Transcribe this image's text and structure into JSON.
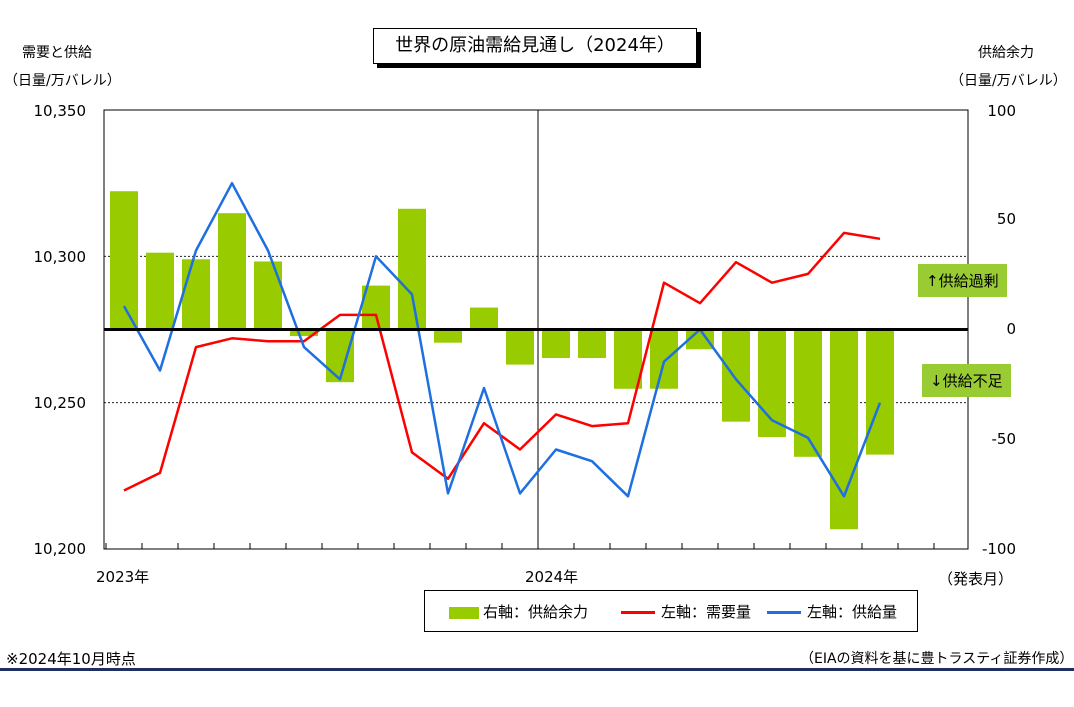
{
  "title": "世界の原油需給見通し（2024年）",
  "left_axis_title": "需要と供給",
  "left_axis_unit": "（日量/万バレル）",
  "right_axis_title": "供給余力",
  "right_axis_unit": "（日量/万バレル）",
  "left_ticks": [
    "10,350",
    "10,300",
    "10,250",
    "10,200"
  ],
  "right_ticks": [
    "100",
    "50",
    "0",
    "-50",
    "-100"
  ],
  "x_labels": [
    "2023年",
    "2024年"
  ],
  "x_axis_note": "（発表月）",
  "annotation_surplus": "↑供給過剰",
  "annotation_deficit": "↓供給不足",
  "legend": {
    "bar": "右軸：供給余力",
    "demand": "左軸：需要量",
    "supply": "左軸：供給量"
  },
  "note_left": "※2024年10月時点",
  "note_right": "（EIAの資料を基に豊トラスティ証券作成）",
  "colors": {
    "bar": "#99cc00",
    "demand": "#ff0000",
    "supply": "#1e6fe0",
    "zero_line": "#000000"
  },
  "chart_data": {
    "type": "bar+line",
    "categories": [
      "2023-01",
      "2023-02",
      "2023-03",
      "2023-04",
      "2023-05",
      "2023-06",
      "2023-07",
      "2023-08",
      "2023-09",
      "2023-10",
      "2023-11",
      "2023-12",
      "2024-01",
      "2024-02",
      "2024-03",
      "2024-04",
      "2024-05",
      "2024-06",
      "2024-07",
      "2024-08",
      "2024-09",
      "2024-10"
    ],
    "series": [
      {
        "name": "右軸：供給余力",
        "axis": "right",
        "type": "bar",
        "values": [
          63,
          35,
          32,
          53,
          31,
          -3,
          -24,
          20,
          55,
          -6,
          10,
          -16,
          -13,
          -13,
          -27,
          -27,
          -9,
          -42,
          -49,
          -58,
          -91,
          -57
        ]
      },
      {
        "name": "左軸：需要量",
        "axis": "left",
        "type": "line",
        "values": [
          10220,
          10226,
          10269,
          10272,
          10271,
          10271,
          10280,
          10280,
          10233,
          10224,
          10243,
          10234,
          10246,
          10242,
          10243,
          10291,
          10284,
          10298,
          10291,
          10294,
          10308,
          10306
        ]
      },
      {
        "name": "左軸：供給量",
        "axis": "left",
        "type": "line",
        "values": [
          10283,
          10261,
          10302,
          10325,
          10302,
          10269,
          10258,
          10300,
          10287,
          10219,
          10255,
          10219,
          10234,
          10230,
          10218,
          10264,
          10275,
          10258,
          10244,
          10238,
          10218,
          10250
        ]
      }
    ],
    "ylim_left": [
      10200,
      10350
    ],
    "ylim_right": [
      -100,
      100
    ],
    "x_tick_labels": [
      "2023年",
      "2024年"
    ],
    "grid": "dashed at 10,250 and 10,300"
  }
}
